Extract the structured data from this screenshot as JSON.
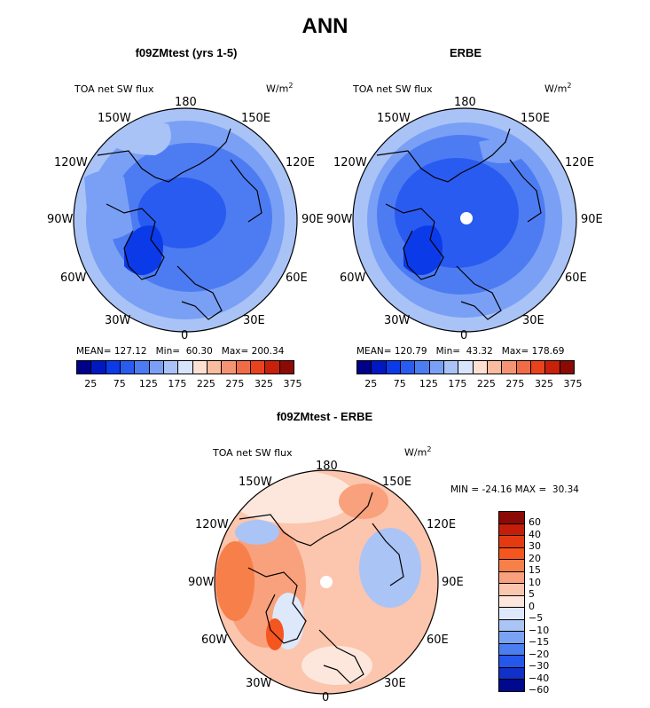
{
  "figure": {
    "title": "ANN"
  },
  "panels": [
    {
      "subtitle": "f09ZMtest (yrs 1-5)",
      "variable": "TOA net SW flux",
      "units_base": "W/m",
      "units_exp": "2",
      "lon_labels": {
        "top": "180",
        "tl": "150W",
        "tr": "150E",
        "ul": "120W",
        "ur": "120E",
        "l": "90W",
        "r": "90E",
        "ll": "60W",
        "lr": "60E",
        "bl": "30W",
        "br": "30E",
        "bottom": "0"
      },
      "stats": "MEAN= 127.12   Min=  60.30   Max= 200.34",
      "colorbar_labels": [
        "25",
        "75",
        "125",
        "175",
        "225",
        "275",
        "325",
        "375"
      ]
    },
    {
      "subtitle": "ERBE",
      "variable": "TOA net SW flux",
      "units_base": "W/m",
      "units_exp": "2",
      "lon_labels": {
        "top": "180",
        "tl": "150W",
        "tr": "150E",
        "ul": "120W",
        "ur": "120E",
        "l": "90W",
        "r": "90E",
        "ll": "60W",
        "lr": "60E",
        "bl": "30W",
        "br": "30E",
        "bottom": "0"
      },
      "stats": "MEAN= 120.79   Min=  43.32   Max= 178.69",
      "colorbar_labels": [
        "25",
        "75",
        "125",
        "175",
        "225",
        "275",
        "325",
        "375"
      ]
    },
    {
      "subtitle": "f09ZMtest - ERBE",
      "variable": "TOA net SW flux",
      "units_base": "W/m",
      "units_exp": "2",
      "lon_labels": {
        "top": "180",
        "tl": "150W",
        "tr": "150E",
        "ul": "120W",
        "ur": "120E",
        "l": "90W",
        "r": "90E",
        "ll": "60W",
        "lr": "60E",
        "bl": "30W",
        "br": "30E",
        "bottom": "0"
      },
      "stats": "MIN = -24.16 MAX =  30.34",
      "colorbar_labels": [
        "60",
        "40",
        "30",
        "20",
        "15",
        "10",
        "5",
        "0",
        "−5",
        "−10",
        "−15",
        "−20",
        "−30",
        "−40",
        "−60"
      ]
    }
  ],
  "colors": {
    "sequential": [
      "#00008b",
      "#0018c4",
      "#0b3ae8",
      "#2a5bf0",
      "#4d7cf2",
      "#7aa0f5",
      "#a9c3f7",
      "#d8e4fb",
      "#fde0d2",
      "#f9bca0",
      "#f59474",
      "#f06c47",
      "#e8421e",
      "#c8200a",
      "#8b0a05"
    ],
    "diverging": [
      "#8b0a05",
      "#c41e0a",
      "#e43a12",
      "#f5551e",
      "#f77f4a",
      "#f9a07c",
      "#fcc5ad",
      "#fde7dc",
      "#dde8fb",
      "#aac4f6",
      "#7aa3f3",
      "#4b7ef0",
      "#2457ea",
      "#1030c8",
      "#00088e"
    ],
    "panel1_bg": "#7aa0f5",
    "panel2_bg": "#4d7cf2",
    "panel3_bg": "#f9bca0"
  }
}
